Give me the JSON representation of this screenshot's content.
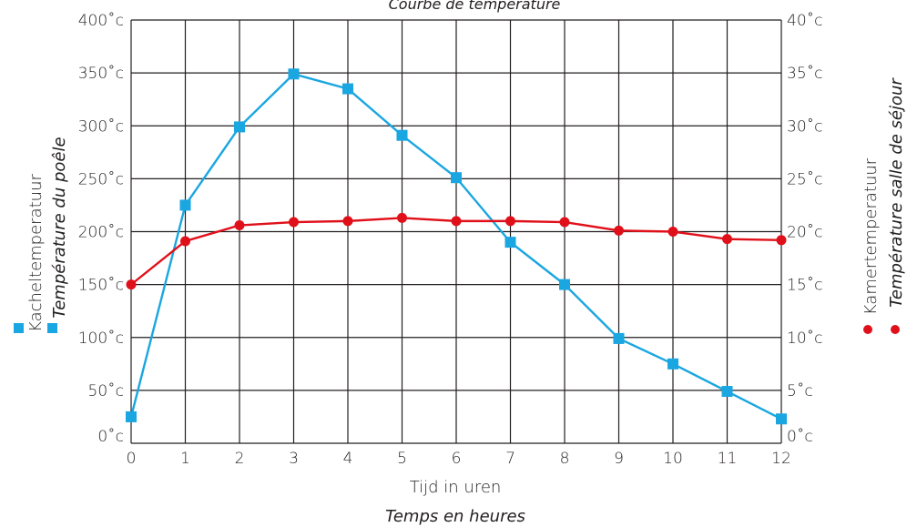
{
  "chart_data": {
    "type": "line",
    "title": "Courbe de température",
    "xlabel": "Tijd in uren",
    "xlabel_fr": "Temps en heures",
    "x": [
      0,
      1,
      2,
      3,
      4,
      5,
      6,
      7,
      8,
      9,
      10,
      11,
      12
    ],
    "x_tick_labels": [
      "0",
      "1",
      "2",
      "3",
      "4",
      "5",
      "6",
      "7",
      "8",
      "9",
      "10",
      "11",
      "12"
    ],
    "xlim": [
      0,
      12
    ],
    "y_left": {
      "label": "Kacheltemperatuur",
      "label_fr": "Température du poêle",
      "ylim": [
        0,
        400
      ],
      "tick_labels": [
        "0˚c",
        "50˚c",
        "100˚c",
        "150˚c",
        "200˚c",
        "250˚c",
        "300˚c",
        "350˚c",
        "400˚c"
      ]
    },
    "y_right": {
      "label": "Kamertemperatuur",
      "label_fr": "Température salle de séjour",
      "ylim": [
        0,
        40
      ],
      "tick_labels": [
        "0˚c",
        "5˚c",
        "10˚c",
        "15˚c",
        "20˚c",
        "25˚c",
        "30˚c",
        "35˚c",
        "40˚c"
      ]
    },
    "grid": true,
    "series": [
      {
        "name": "Kacheltemperatuur",
        "axis": "left",
        "marker": "square",
        "color": "#1aa6e0",
        "values": [
          25,
          225,
          299,
          349,
          335,
          291,
          251,
          190,
          150,
          99,
          75,
          49,
          23
        ]
      },
      {
        "name": "Kamertemperatuur",
        "axis": "right",
        "marker": "circle",
        "color": "#e0101a",
        "values": [
          15.0,
          19.1,
          20.6,
          20.9,
          21.0,
          21.3,
          21.0,
          21.0,
          20.9,
          20.1,
          20.0,
          19.3,
          19.2
        ]
      }
    ]
  }
}
